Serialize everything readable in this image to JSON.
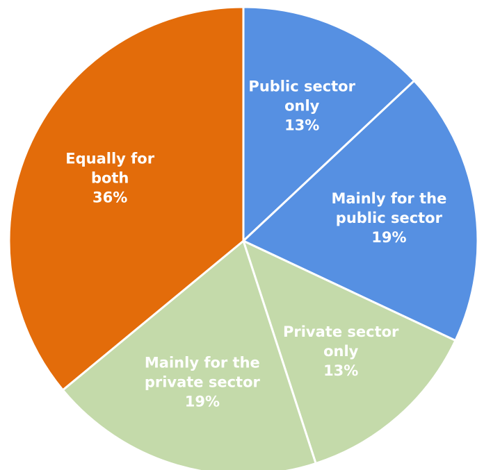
{
  "chart_data": {
    "type": "pie",
    "title": "",
    "slices": [
      {
        "lines": [
          "Public sector",
          "only"
        ],
        "value": 13,
        "label": "13%",
        "color": "#5690E2"
      },
      {
        "lines": [
          "Mainly for the",
          "public sector"
        ],
        "value": 19,
        "label": "19%",
        "color": "#5690E2"
      },
      {
        "lines": [
          "Private sector",
          "only"
        ],
        "value": 13,
        "label": "13%",
        "color": "#C4DAAA"
      },
      {
        "lines": [
          "Mainly for the",
          "private sector"
        ],
        "value": 19,
        "label": "19%",
        "color": "#C4DAAA"
      },
      {
        "lines": [
          "Equally for",
          "both"
        ],
        "value": 36,
        "label": "36%",
        "color": "#E36C0A"
      }
    ],
    "start": "12 o'clock",
    "direction": "clockwise",
    "legend": "none"
  }
}
